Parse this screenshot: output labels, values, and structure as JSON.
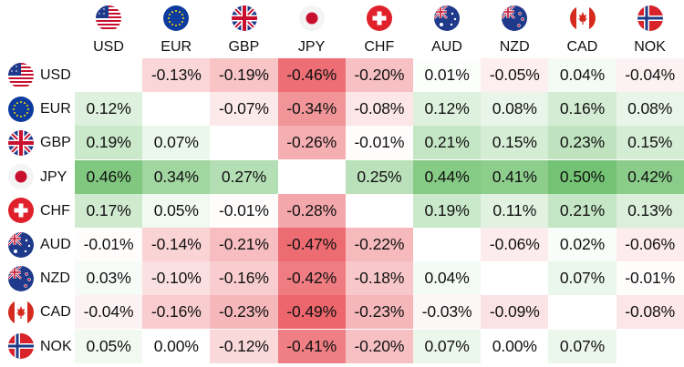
{
  "chart_data": {
    "type": "heatmap",
    "title": "",
    "columns": [
      "USD",
      "EUR",
      "GBP",
      "JPY",
      "CHF",
      "AUD",
      "NZD",
      "CAD",
      "NOK"
    ],
    "rows": [
      "USD",
      "EUR",
      "GBP",
      "JPY",
      "CHF",
      "AUD",
      "NZD",
      "CAD",
      "NOK"
    ],
    "values": [
      [
        null,
        -0.13,
        -0.19,
        -0.46,
        -0.2,
        0.01,
        -0.05,
        0.04,
        -0.04
      ],
      [
        0.12,
        null,
        -0.07,
        -0.34,
        -0.08,
        0.12,
        0.08,
        0.16,
        0.08
      ],
      [
        0.19,
        0.07,
        null,
        -0.26,
        -0.01,
        0.21,
        0.15,
        0.23,
        0.15
      ],
      [
        0.46,
        0.34,
        0.27,
        null,
        0.25,
        0.44,
        0.41,
        0.5,
        0.42
      ],
      [
        0.17,
        0.05,
        -0.01,
        -0.28,
        null,
        0.19,
        0.11,
        0.21,
        0.13
      ],
      [
        -0.01,
        -0.14,
        -0.21,
        -0.47,
        -0.22,
        null,
        -0.06,
        0.02,
        -0.06
      ],
      [
        0.03,
        -0.1,
        -0.16,
        -0.42,
        -0.18,
        0.04,
        null,
        0.07,
        -0.01
      ],
      [
        -0.04,
        -0.16,
        -0.23,
        -0.49,
        -0.23,
        -0.03,
        -0.09,
        null,
        -0.08
      ],
      [
        0.05,
        0.0,
        -0.12,
        -0.41,
        -0.2,
        0.07,
        0.0,
        0.07,
        null
      ]
    ],
    "labels": [
      [
        null,
        "-0.13%",
        "-0.19%",
        "-0.46%",
        "-0.20%",
        "0.01%",
        "-0.05%",
        "0.04%",
        "-0.04%"
      ],
      [
        "0.12%",
        null,
        "-0.07%",
        "-0.34%",
        "-0.08%",
        "0.12%",
        "0.08%",
        "0.16%",
        "0.08%"
      ],
      [
        "0.19%",
        "0.07%",
        null,
        "-0.26%",
        "-0.01%",
        "0.21%",
        "0.15%",
        "0.23%",
        "0.15%"
      ],
      [
        "0.46%",
        "0.34%",
        "0.27%",
        null,
        "0.25%",
        "0.44%",
        "0.41%",
        "0.50%",
        "0.42%"
      ],
      [
        "0.17%",
        "0.05%",
        "-0.01%",
        "-0.28%",
        null,
        "0.19%",
        "0.11%",
        "0.21%",
        "0.13%"
      ],
      [
        "-0.01%",
        "-0.14%",
        "-0.21%",
        "-0.47%",
        "-0.22%",
        null,
        "-0.06%",
        "0.02%",
        "-0.06%"
      ],
      [
        "0.03%",
        "-0.10%",
        "-0.16%",
        "-0.42%",
        "-0.18%",
        "0.04%",
        null,
        "0.07%",
        "-0.01%"
      ],
      [
        "-0.04%",
        "-0.16%",
        "-0.23%",
        "-0.49%",
        "-0.23%",
        "-0.03%",
        "-0.09%",
        null,
        "-0.08%"
      ],
      [
        "0.05%",
        "0.00%",
        "-0.12%",
        "-0.41%",
        "-0.20%",
        "0.07%",
        "0.00%",
        "0.07%",
        null
      ]
    ],
    "colors": {
      "positive": "#5cb85c",
      "negative": "#e8474f",
      "neutral": "#ffffff"
    }
  },
  "flags": {
    "USD": "usa-flag-icon",
    "EUR": "eu-flag-icon",
    "GBP": "uk-flag-icon",
    "JPY": "japan-flag-icon",
    "CHF": "switzerland-flag-icon",
    "AUD": "australia-flag-icon",
    "NZD": "new-zealand-flag-icon",
    "CAD": "canada-flag-icon",
    "NOK": "norway-flag-icon"
  }
}
